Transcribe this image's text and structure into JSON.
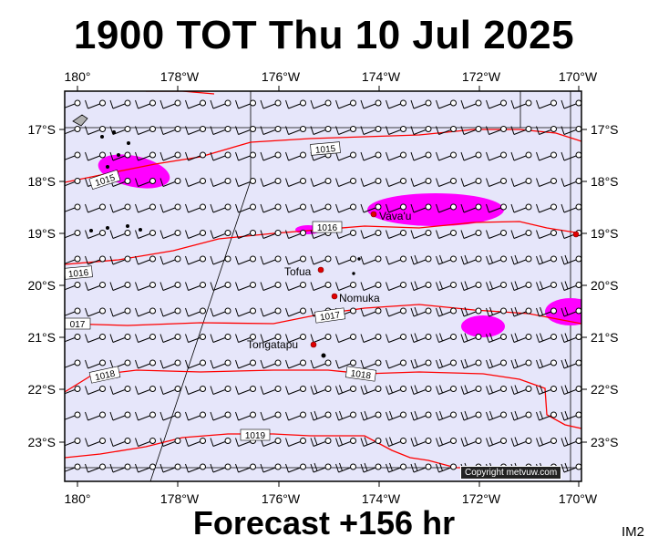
{
  "title": "1900 TOT Thu 10 Jul 2025",
  "footer": "Forecast +156 hr",
  "image_id": "IM2",
  "copyright": "Copyright metvuw.com",
  "colors": {
    "background": "#e6e6fa",
    "isobar": "#ff0000",
    "rain": "#ff00ff",
    "barb": "#000000"
  },
  "axes": {
    "top_lon": [
      "180°",
      "178°W",
      "176°W",
      "174°W",
      "172°W",
      "170°W"
    ],
    "bottom_lon": [
      "180°",
      "178°W",
      "176°W",
      "174°W",
      "172°W",
      "170°W"
    ],
    "left_lat": [
      "17°S",
      "18°S",
      "19°S",
      "20°S",
      "21°S",
      "22°S",
      "23°S"
    ],
    "right_lat": [
      "17°S",
      "18°S",
      "19°S",
      "20°S",
      "21°S",
      "22°S",
      "23°S"
    ]
  },
  "isobars": [
    "1015",
    "1015",
    "1016",
    "1016",
    "017",
    "1017",
    "1018",
    "1018",
    "1019"
  ],
  "places": [
    "Vava'u",
    "Tofua",
    "Nomuka",
    "Tongatapu"
  ]
}
